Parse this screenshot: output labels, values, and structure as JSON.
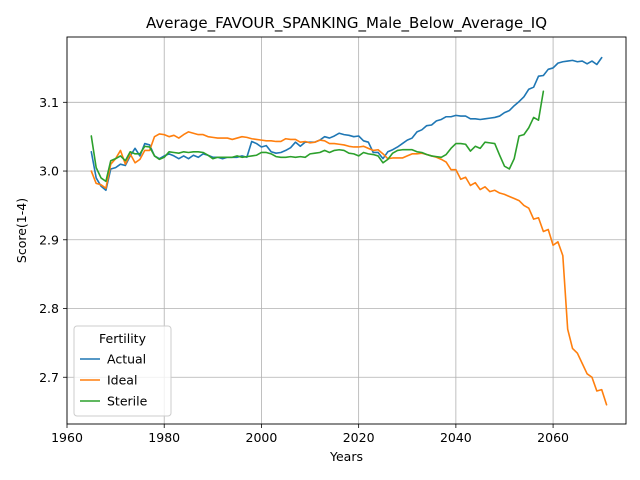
{
  "chart_data": {
    "type": "line",
    "title": "Average_FAVOUR_SPANKING_Male_Below_Average_IQ",
    "xlabel": "Years",
    "ylabel": "Score(1-4)",
    "xlim": [
      1960,
      2075
    ],
    "ylim": [
      2.632,
      3.195
    ],
    "xticks": [
      1960,
      1980,
      2000,
      2020,
      2040,
      2060
    ],
    "xtick_labels": [
      "1960",
      "1980",
      "2000",
      "2020",
      "2040",
      "2060"
    ],
    "yticks": [
      2.7,
      2.8,
      2.9,
      3.0,
      3.1
    ],
    "ytick_labels": [
      "2.7",
      "2.8",
      "2.9",
      "3.0",
      "3.1"
    ],
    "grid": true,
    "legend": {
      "title": "Fertility",
      "placement": "lower-left"
    },
    "series": [
      {
        "name": "Actual",
        "color": "#1f77b4",
        "points": [
          [
            1965,
            3.028
          ],
          [
            1966,
            2.99
          ],
          [
            1967,
            2.978
          ],
          [
            1968,
            2.972
          ],
          [
            1969,
            3.003
          ],
          [
            1970,
            3.005
          ],
          [
            1971,
            3.01
          ],
          [
            1972,
            3.008
          ],
          [
            1973,
            3.022
          ],
          [
            1974,
            3.033
          ],
          [
            1975,
            3.022
          ],
          [
            1976,
            3.04
          ],
          [
            1977,
            3.038
          ],
          [
            1978,
            3.022
          ],
          [
            1979,
            3.018
          ],
          [
            1980,
            3.022
          ],
          [
            1981,
            3.025
          ],
          [
            1982,
            3.022
          ],
          [
            1983,
            3.018
          ],
          [
            1984,
            3.022
          ],
          [
            1985,
            3.018
          ],
          [
            1986,
            3.023
          ],
          [
            1987,
            3.02
          ],
          [
            1988,
            3.025
          ],
          [
            1989,
            3.023
          ],
          [
            1990,
            3.02
          ],
          [
            1991,
            3.02
          ],
          [
            1992,
            3.018
          ],
          [
            1993,
            3.02
          ],
          [
            1994,
            3.02
          ],
          [
            1995,
            3.02
          ],
          [
            1996,
            3.022
          ],
          [
            1997,
            3.02
          ],
          [
            1998,
            3.043
          ],
          [
            1999,
            3.04
          ],
          [
            2000,
            3.035
          ],
          [
            2001,
            3.037
          ],
          [
            2002,
            3.028
          ],
          [
            2003,
            3.026
          ],
          [
            2004,
            3.027
          ],
          [
            2005,
            3.03
          ],
          [
            2006,
            3.034
          ],
          [
            2007,
            3.042
          ],
          [
            2008,
            3.036
          ],
          [
            2009,
            3.042
          ],
          [
            2010,
            3.042
          ],
          [
            2011,
            3.042
          ],
          [
            2012,
            3.045
          ],
          [
            2013,
            3.05
          ],
          [
            2014,
            3.048
          ],
          [
            2015,
            3.051
          ],
          [
            2016,
            3.055
          ],
          [
            2017,
            3.053
          ],
          [
            2018,
            3.052
          ],
          [
            2019,
            3.05
          ],
          [
            2020,
            3.051
          ],
          [
            2021,
            3.044
          ],
          [
            2022,
            3.042
          ],
          [
            2023,
            3.027
          ],
          [
            2024,
            3.027
          ],
          [
            2025,
            3.018
          ],
          [
            2026,
            3.028
          ],
          [
            2027,
            3.031
          ],
          [
            2028,
            3.035
          ],
          [
            2029,
            3.04
          ],
          [
            2030,
            3.045
          ],
          [
            2031,
            3.048
          ],
          [
            2032,
            3.057
          ],
          [
            2033,
            3.06
          ],
          [
            2034,
            3.066
          ],
          [
            2035,
            3.067
          ],
          [
            2036,
            3.073
          ],
          [
            2037,
            3.075
          ],
          [
            2038,
            3.079
          ],
          [
            2039,
            3.079
          ],
          [
            2040,
            3.081
          ],
          [
            2041,
            3.08
          ],
          [
            2042,
            3.08
          ],
          [
            2043,
            3.076
          ],
          [
            2044,
            3.076
          ],
          [
            2045,
            3.075
          ],
          [
            2046,
            3.076
          ],
          [
            2047,
            3.077
          ],
          [
            2048,
            3.078
          ],
          [
            2049,
            3.08
          ],
          [
            2050,
            3.085
          ],
          [
            2051,
            3.088
          ],
          [
            2052,
            3.095
          ],
          [
            2053,
            3.101
          ],
          [
            2054,
            3.108
          ],
          [
            2055,
            3.119
          ],
          [
            2056,
            3.122
          ],
          [
            2057,
            3.138
          ],
          [
            2058,
            3.139
          ],
          [
            2059,
            3.148
          ],
          [
            2060,
            3.15
          ],
          [
            2061,
            3.157
          ],
          [
            2062,
            3.159
          ],
          [
            2063,
            3.16
          ],
          [
            2064,
            3.161
          ],
          [
            2065,
            3.159
          ],
          [
            2066,
            3.16
          ],
          [
            2067,
            3.156
          ],
          [
            2068,
            3.16
          ],
          [
            2069,
            3.155
          ],
          [
            2070,
            3.165
          ]
        ]
      },
      {
        "name": "Ideal",
        "color": "#ff7f0e",
        "points": [
          [
            1965,
            3.0
          ],
          [
            1966,
            2.982
          ],
          [
            1967,
            2.98
          ],
          [
            1968,
            2.975
          ],
          [
            1969,
            3.01
          ],
          [
            1970,
            3.018
          ],
          [
            1971,
            3.03
          ],
          [
            1972,
            3.01
          ],
          [
            1973,
            3.025
          ],
          [
            1974,
            3.012
          ],
          [
            1975,
            3.017
          ],
          [
            1976,
            3.03
          ],
          [
            1977,
            3.03
          ],
          [
            1978,
            3.05
          ],
          [
            1979,
            3.054
          ],
          [
            1980,
            3.053
          ],
          [
            1981,
            3.05
          ],
          [
            1982,
            3.052
          ],
          [
            1983,
            3.048
          ],
          [
            1984,
            3.053
          ],
          [
            1985,
            3.057
          ],
          [
            1986,
            3.055
          ],
          [
            1987,
            3.053
          ],
          [
            1988,
            3.053
          ],
          [
            1989,
            3.05
          ],
          [
            1990,
            3.049
          ],
          [
            1991,
            3.048
          ],
          [
            1992,
            3.048
          ],
          [
            1993,
            3.048
          ],
          [
            1994,
            3.046
          ],
          [
            1995,
            3.048
          ],
          [
            1996,
            3.05
          ],
          [
            1997,
            3.049
          ],
          [
            1998,
            3.047
          ],
          [
            1999,
            3.046
          ],
          [
            2000,
            3.045
          ],
          [
            2001,
            3.044
          ],
          [
            2002,
            3.044
          ],
          [
            2003,
            3.043
          ],
          [
            2004,
            3.043
          ],
          [
            2005,
            3.047
          ],
          [
            2006,
            3.046
          ],
          [
            2007,
            3.046
          ],
          [
            2008,
            3.042
          ],
          [
            2009,
            3.043
          ],
          [
            2010,
            3.041
          ],
          [
            2011,
            3.042
          ],
          [
            2012,
            3.045
          ],
          [
            2013,
            3.044
          ],
          [
            2014,
            3.04
          ],
          [
            2015,
            3.04
          ],
          [
            2016,
            3.039
          ],
          [
            2017,
            3.038
          ],
          [
            2018,
            3.036
          ],
          [
            2019,
            3.035
          ],
          [
            2020,
            3.035
          ],
          [
            2021,
            3.036
          ],
          [
            2022,
            3.033
          ],
          [
            2023,
            3.03
          ],
          [
            2024,
            3.031
          ],
          [
            2025,
            3.025
          ],
          [
            2026,
            3.018
          ],
          [
            2027,
            3.019
          ],
          [
            2028,
            3.019
          ],
          [
            2029,
            3.019
          ],
          [
            2030,
            3.022
          ],
          [
            2031,
            3.025
          ],
          [
            2032,
            3.025
          ],
          [
            2033,
            3.026
          ],
          [
            2034,
            3.024
          ],
          [
            2035,
            3.022
          ],
          [
            2036,
            3.02
          ],
          [
            2037,
            3.017
          ],
          [
            2038,
            3.013
          ],
          [
            2039,
            3.002
          ],
          [
            2040,
            3.002
          ],
          [
            2041,
            2.988
          ],
          [
            2042,
            2.991
          ],
          [
            2043,
            2.979
          ],
          [
            2044,
            2.983
          ],
          [
            2045,
            2.973
          ],
          [
            2046,
            2.977
          ],
          [
            2047,
            2.97
          ],
          [
            2048,
            2.972
          ],
          [
            2049,
            2.968
          ],
          [
            2050,
            2.966
          ],
          [
            2051,
            2.963
          ],
          [
            2052,
            2.96
          ],
          [
            2053,
            2.957
          ],
          [
            2054,
            2.95
          ],
          [
            2055,
            2.946
          ],
          [
            2056,
            2.93
          ],
          [
            2057,
            2.932
          ],
          [
            2058,
            2.912
          ],
          [
            2059,
            2.915
          ],
          [
            2060,
            2.892
          ],
          [
            2061,
            2.897
          ],
          [
            2062,
            2.877
          ],
          [
            2063,
            2.77
          ],
          [
            2064,
            2.742
          ],
          [
            2065,
            2.735
          ],
          [
            2066,
            2.72
          ],
          [
            2067,
            2.705
          ],
          [
            2068,
            2.7
          ],
          [
            2069,
            2.68
          ],
          [
            2070,
            2.682
          ],
          [
            2071,
            2.66
          ]
        ]
      },
      {
        "name": "Sterile",
        "color": "#2ca02c",
        "points": [
          [
            1965,
            3.051
          ],
          [
            1966,
            3.005
          ],
          [
            1967,
            2.99
          ],
          [
            1968,
            2.985
          ],
          [
            1969,
            3.015
          ],
          [
            1970,
            3.018
          ],
          [
            1971,
            3.022
          ],
          [
            1972,
            3.015
          ],
          [
            1973,
            3.028
          ],
          [
            1974,
            3.025
          ],
          [
            1975,
            3.025
          ],
          [
            1976,
            3.036
          ],
          [
            1977,
            3.035
          ],
          [
            1978,
            3.022
          ],
          [
            1979,
            3.017
          ],
          [
            1980,
            3.02
          ],
          [
            1981,
            3.028
          ],
          [
            1982,
            3.027
          ],
          [
            1983,
            3.026
          ],
          [
            1984,
            3.028
          ],
          [
            1985,
            3.027
          ],
          [
            1986,
            3.028
          ],
          [
            1987,
            3.028
          ],
          [
            1988,
            3.027
          ],
          [
            1989,
            3.023
          ],
          [
            1990,
            3.018
          ],
          [
            1991,
            3.02
          ],
          [
            1992,
            3.02
          ],
          [
            1993,
            3.02
          ],
          [
            1994,
            3.02
          ],
          [
            1995,
            3.022
          ],
          [
            1996,
            3.02
          ],
          [
            1997,
            3.021
          ],
          [
            1998,
            3.022
          ],
          [
            1999,
            3.023
          ],
          [
            2000,
            3.027
          ],
          [
            2001,
            3.027
          ],
          [
            2002,
            3.025
          ],
          [
            2003,
            3.021
          ],
          [
            2004,
            3.02
          ],
          [
            2005,
            3.02
          ],
          [
            2006,
            3.021
          ],
          [
            2007,
            3.02
          ],
          [
            2008,
            3.021
          ],
          [
            2009,
            3.02
          ],
          [
            2010,
            3.025
          ],
          [
            2011,
            3.026
          ],
          [
            2012,
            3.027
          ],
          [
            2013,
            3.03
          ],
          [
            2014,
            3.027
          ],
          [
            2015,
            3.03
          ],
          [
            2016,
            3.031
          ],
          [
            2017,
            3.03
          ],
          [
            2018,
            3.026
          ],
          [
            2019,
            3.025
          ],
          [
            2020,
            3.022
          ],
          [
            2021,
            3.027
          ],
          [
            2022,
            3.025
          ],
          [
            2023,
            3.024
          ],
          [
            2024,
            3.022
          ],
          [
            2025,
            3.012
          ],
          [
            2026,
            3.017
          ],
          [
            2027,
            3.026
          ],
          [
            2028,
            3.03
          ],
          [
            2029,
            3.031
          ],
          [
            2030,
            3.031
          ],
          [
            2031,
            3.031
          ],
          [
            2032,
            3.028
          ],
          [
            2033,
            3.027
          ],
          [
            2034,
            3.024
          ],
          [
            2035,
            3.022
          ],
          [
            2036,
            3.021
          ],
          [
            2037,
            3.02
          ],
          [
            2038,
            3.024
          ],
          [
            2039,
            3.033
          ],
          [
            2040,
            3.04
          ],
          [
            2041,
            3.04
          ],
          [
            2042,
            3.039
          ],
          [
            2043,
            3.029
          ],
          [
            2044,
            3.036
          ],
          [
            2045,
            3.033
          ],
          [
            2046,
            3.042
          ],
          [
            2047,
            3.041
          ],
          [
            2048,
            3.04
          ],
          [
            2049,
            3.023
          ],
          [
            2050,
            3.007
          ],
          [
            2051,
            3.003
          ],
          [
            2052,
            3.018
          ],
          [
            2053,
            3.051
          ],
          [
            2054,
            3.053
          ],
          [
            2055,
            3.063
          ],
          [
            2056,
            3.078
          ],
          [
            2057,
            3.074
          ],
          [
            2058,
            3.116
          ]
        ]
      }
    ]
  }
}
